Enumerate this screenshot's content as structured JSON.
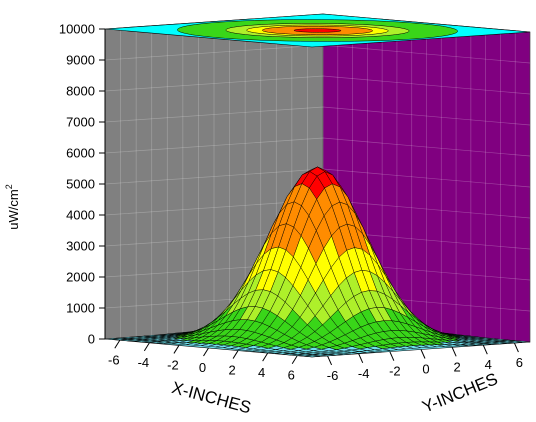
{
  "chart_data": {
    "type": "surface3d",
    "title": "",
    "xlabel": "X-INCHES",
    "ylabel": "Y-INCHES",
    "zlabel": "uW/cm",
    "zlabel_superscript": "2",
    "x_range": [
      -7,
      7
    ],
    "y_range": [
      -7,
      7
    ],
    "z_range": [
      0,
      10000
    ],
    "x_ticks": [
      -6,
      -4,
      -2,
      0,
      2,
      4,
      6
    ],
    "y_ticks": [
      -6,
      -4,
      -2,
      0,
      2,
      4,
      6
    ],
    "z_ticks": [
      0,
      1000,
      2000,
      3000,
      4000,
      5000,
      6000,
      7000,
      8000,
      9000,
      10000
    ],
    "surface": {
      "function": "gaussian",
      "peak_value": 5600,
      "center": [
        0,
        0
      ],
      "sigma": 2.3
    },
    "contour_levels": [
      {
        "min": 0,
        "max": 100,
        "color": "#6fe3f0"
      },
      {
        "min": 100,
        "max": 1000,
        "color": "#39d619"
      },
      {
        "min": 1000,
        "max": 2000,
        "color": "#aef02a"
      },
      {
        "min": 2000,
        "max": 3000,
        "color": "#ffff00"
      },
      {
        "min": 3000,
        "max": 5000,
        "color": "#ff8c00"
      },
      {
        "min": 5000,
        "max": 6000,
        "color": "#ff0000"
      }
    ],
    "walls": {
      "left_color": "#808080",
      "right_color": "#800080",
      "top_color": "#00ffff"
    },
    "grid": true
  }
}
